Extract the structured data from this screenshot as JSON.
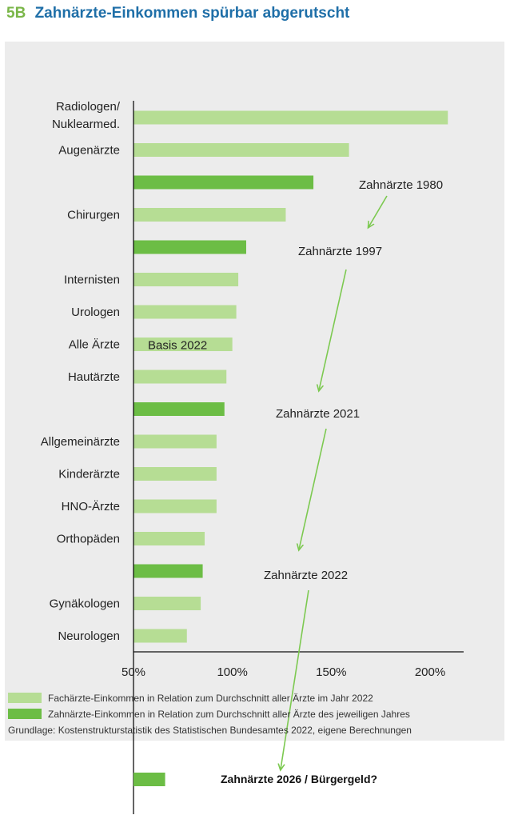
{
  "header": {
    "number": "5B",
    "title": "Zahnärzte-Einkommen spürbar abgerutscht"
  },
  "colors": {
    "title_number": "#7ab648",
    "title_text": "#1f6fa8",
    "panel_bg": "#ececec",
    "light_green": "#b6dd94",
    "dark_green": "#6cbd45",
    "arrow": "#7cc950",
    "axis": "#111111"
  },
  "chart_data": {
    "type": "bar",
    "orientation": "horizontal",
    "xlim": [
      50,
      220
    ],
    "xticks": [
      50,
      100,
      150,
      200
    ],
    "xtick_labels": [
      "50%",
      "100%",
      "150%",
      "200%"
    ],
    "grid": false,
    "bars": [
      {
        "label": "Radiologen/ Nuklearmed.",
        "value": 209,
        "kind": "facharzt"
      },
      {
        "label": "Augenärzte",
        "value": 159,
        "kind": "facharzt"
      },
      {
        "label": "",
        "value": 141,
        "kind": "zahnarzt"
      },
      {
        "label": "Chirurgen",
        "value": 127,
        "kind": "facharzt"
      },
      {
        "label": "",
        "value": 107,
        "kind": "zahnarzt"
      },
      {
        "label": "Internisten",
        "value": 103,
        "kind": "facharzt"
      },
      {
        "label": "Urologen",
        "value": 102,
        "kind": "facharzt"
      },
      {
        "label": "Alle Ärzte",
        "value": 100,
        "kind": "facharzt",
        "inner_label": "Basis 2022"
      },
      {
        "label": "Hautärzte",
        "value": 97,
        "kind": "facharzt"
      },
      {
        "label": "",
        "value": 96,
        "kind": "zahnarzt"
      },
      {
        "label": "Allgemeinärzte",
        "value": 92,
        "kind": "facharzt"
      },
      {
        "label": "Kinderärzte",
        "value": 92,
        "kind": "facharzt"
      },
      {
        "label": "HNO-Ärzte",
        "value": 92,
        "kind": "facharzt"
      },
      {
        "label": "Orthopäden",
        "value": 86,
        "kind": "facharzt"
      },
      {
        "label": "",
        "value": 85,
        "kind": "zahnarzt"
      },
      {
        "label": "Gynäkologen",
        "value": 84,
        "kind": "facharzt"
      },
      {
        "label": "Neurologen",
        "value": 77,
        "kind": "facharzt"
      }
    ],
    "annotations": [
      "Zahnärzte 1980",
      "Zahnärzte 1997",
      "Zahnärzte 2021",
      "Zahnärzte 2022"
    ],
    "extra_bar": {
      "label": "Zahnärzte 2026 / Bürgergeld?",
      "value": 66,
      "kind": "zahnarzt"
    },
    "legend": [
      {
        "label": "Fachärzte-Einkommen in Relation zum Durchschnitt aller Ärzte im Jahr 2022",
        "kind": "facharzt"
      },
      {
        "label": "Zahnärzte-Einkommen in Relation zum Durchschnitt aller Ärzte des jeweiligen Jahres",
        "kind": "zahnarzt"
      }
    ],
    "source": "Grundlage: Kostenstrukturstatistik des Statistischen Bundesamtes 2022, eigene Berechnungen",
    "legend_position": "bottom-left"
  }
}
